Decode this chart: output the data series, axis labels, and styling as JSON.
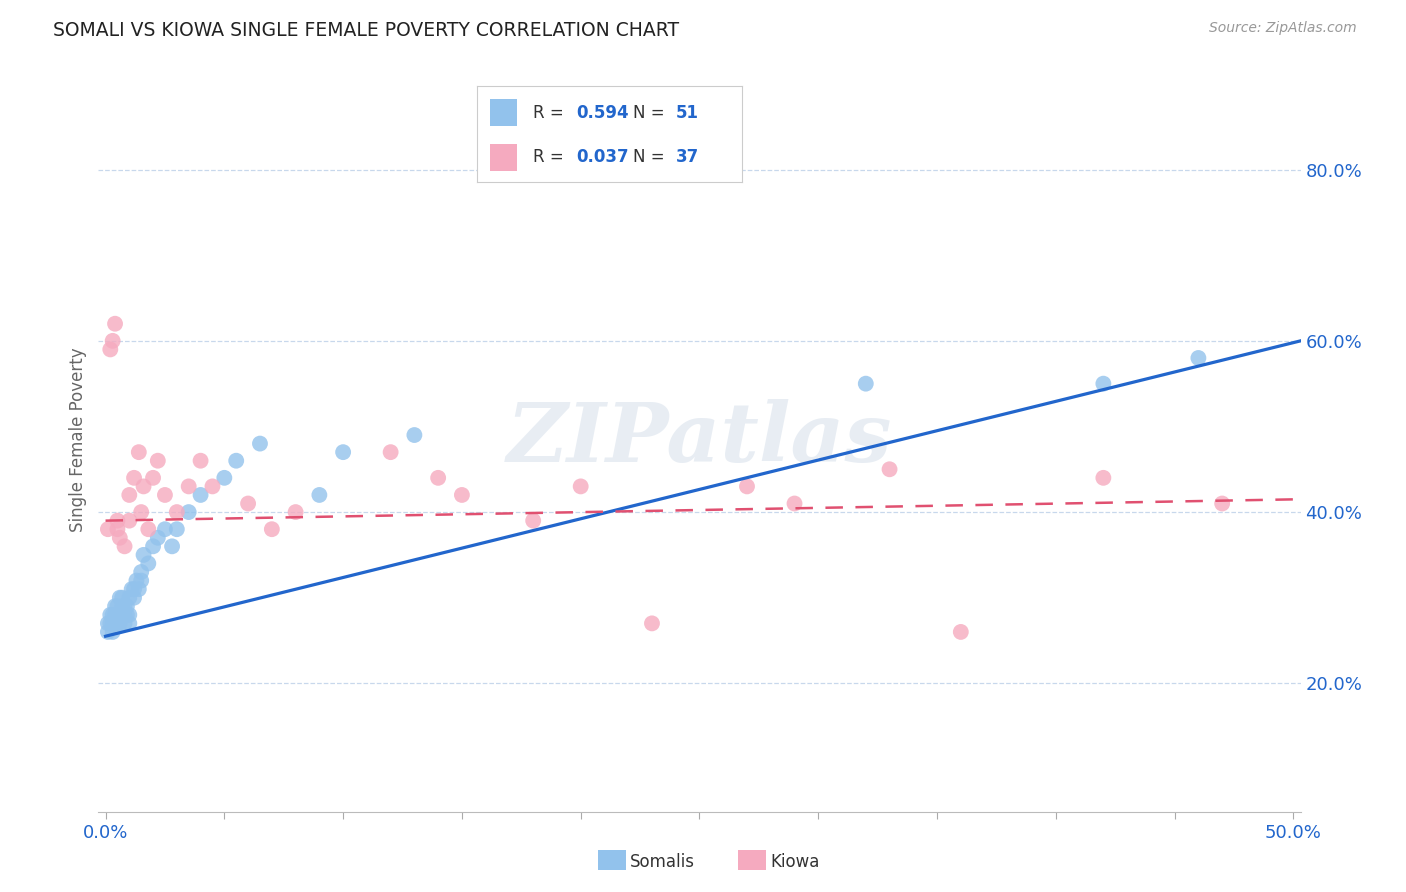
{
  "title": "SOMALI VS KIOWA SINGLE FEMALE POVERTY CORRELATION CHART",
  "source": "Source: ZipAtlas.com",
  "ylabel": "Single Female Poverty",
  "xlim": [
    -0.003,
    0.503
  ],
  "ylim": [
    0.05,
    0.92
  ],
  "xtick_positions": [
    0.0,
    0.05,
    0.1,
    0.15,
    0.2,
    0.25,
    0.3,
    0.35,
    0.4,
    0.45,
    0.5
  ],
  "xtick_show_labels": [
    0.0,
    0.5
  ],
  "xtick_label_map": {
    "0.0": "0.0%",
    "0.5": "50.0%"
  },
  "yticks": [
    0.2,
    0.4,
    0.6,
    0.8
  ],
  "ytick_labels": [
    "20.0%",
    "40.0%",
    "60.0%",
    "80.0%"
  ],
  "somali_R": "0.594",
  "somali_N": "51",
  "kiowa_R": "0.037",
  "kiowa_N": "37",
  "somali_dot_color": "#92C2EC",
  "kiowa_dot_color": "#F5AABF",
  "somali_line_color": "#2266CC",
  "kiowa_line_color": "#E05070",
  "label_color": "#2266CC",
  "watermark": "ZIPatlas",
  "grid_color": "#C8D8EC",
  "axis_label_color": "#666666",
  "tick_color": "#2266CC",
  "somali_x": [
    0.001,
    0.001,
    0.002,
    0.002,
    0.003,
    0.003,
    0.003,
    0.004,
    0.004,
    0.004,
    0.005,
    0.005,
    0.005,
    0.006,
    0.006,
    0.006,
    0.007,
    0.007,
    0.008,
    0.008,
    0.008,
    0.009,
    0.009,
    0.01,
    0.01,
    0.01,
    0.011,
    0.012,
    0.012,
    0.013,
    0.014,
    0.015,
    0.015,
    0.016,
    0.018,
    0.02,
    0.022,
    0.025,
    0.028,
    0.03,
    0.035,
    0.04,
    0.05,
    0.055,
    0.065,
    0.09,
    0.1,
    0.13,
    0.32,
    0.42,
    0.46
  ],
  "somali_y": [
    0.26,
    0.27,
    0.27,
    0.28,
    0.26,
    0.27,
    0.28,
    0.27,
    0.28,
    0.29,
    0.27,
    0.28,
    0.29,
    0.27,
    0.28,
    0.3,
    0.29,
    0.3,
    0.27,
    0.28,
    0.29,
    0.28,
    0.29,
    0.27,
    0.28,
    0.3,
    0.31,
    0.3,
    0.31,
    0.32,
    0.31,
    0.32,
    0.33,
    0.35,
    0.34,
    0.36,
    0.37,
    0.38,
    0.36,
    0.38,
    0.4,
    0.42,
    0.44,
    0.46,
    0.48,
    0.42,
    0.47,
    0.49,
    0.55,
    0.55,
    0.58
  ],
  "kiowa_x": [
    0.001,
    0.002,
    0.003,
    0.004,
    0.005,
    0.005,
    0.006,
    0.008,
    0.01,
    0.01,
    0.012,
    0.014,
    0.015,
    0.016,
    0.018,
    0.02,
    0.022,
    0.025,
    0.03,
    0.035,
    0.04,
    0.045,
    0.06,
    0.07,
    0.08,
    0.12,
    0.14,
    0.15,
    0.18,
    0.2,
    0.23,
    0.27,
    0.29,
    0.33,
    0.36,
    0.42,
    0.47
  ],
  "kiowa_y": [
    0.38,
    0.59,
    0.6,
    0.62,
    0.38,
    0.39,
    0.37,
    0.36,
    0.39,
    0.42,
    0.44,
    0.47,
    0.4,
    0.43,
    0.38,
    0.44,
    0.46,
    0.42,
    0.4,
    0.43,
    0.46,
    0.43,
    0.41,
    0.38,
    0.4,
    0.47,
    0.44,
    0.42,
    0.39,
    0.43,
    0.27,
    0.43,
    0.41,
    0.45,
    0.26,
    0.44,
    0.41
  ]
}
